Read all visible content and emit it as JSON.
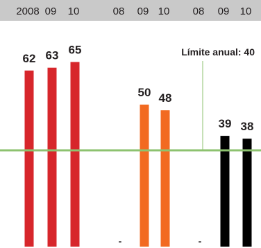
{
  "chart_data": {
    "type": "bar",
    "ylim": [
      0,
      70
    ],
    "grid": false,
    "groups": [
      {
        "color": "#d7262b",
        "bars": [
          {
            "category": "2008",
            "value": 62,
            "label": "62"
          },
          {
            "category": "09",
            "value": 63,
            "label": "63"
          },
          {
            "category": "10",
            "value": 65,
            "label": "65"
          }
        ]
      },
      {
        "color": "#f26a21",
        "bars": [
          {
            "category": "08",
            "value": null,
            "label": "-"
          },
          {
            "category": "09",
            "value": 50,
            "label": "50"
          },
          {
            "category": "10",
            "value": 48,
            "label": "48"
          }
        ]
      },
      {
        "color": "#000000",
        "bars": [
          {
            "category": "08",
            "value": null,
            "label": "-"
          },
          {
            "category": "09",
            "value": 39,
            "label": "39"
          },
          {
            "category": "10",
            "value": 38,
            "label": "38"
          }
        ]
      }
    ],
    "reference_line": {
      "value": 40,
      "label": "Límite anual: 40",
      "color": "#8dc26f"
    },
    "header_band_color": "#c9c9c9"
  }
}
